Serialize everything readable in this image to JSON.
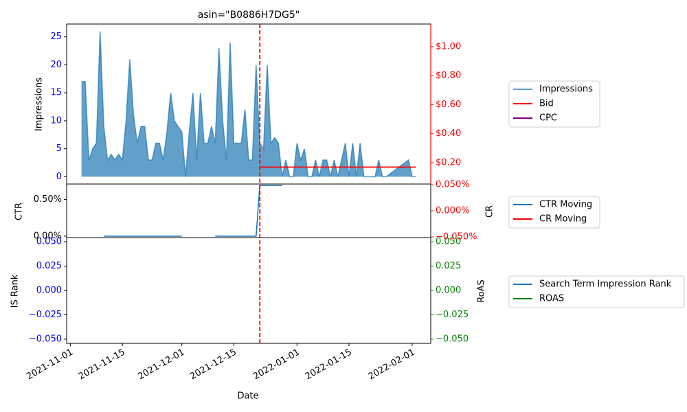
{
  "chart_data": [
    {
      "type": "area",
      "title": "asin=\"B0886H7DG5\"",
      "ylabel": "Impressions",
      "ylim": [
        -1.3,
        27.3
      ],
      "yticks": [
        0,
        5,
        10,
        15,
        20,
        25
      ],
      "ytick_color": "blue",
      "y2lim": [
        0.053,
        1.156
      ],
      "y2ticks": [
        {
          "value": 0.2,
          "label": "$0.20"
        },
        {
          "value": 0.4,
          "label": "$0.40"
        },
        {
          "value": 0.6,
          "label": "$0.60"
        },
        {
          "value": 0.8,
          "label": "$0.80"
        },
        {
          "value": 1.0,
          "label": "$1.00"
        }
      ],
      "y2tick_color": "red",
      "vline": "2021-12-22",
      "vline_color": "red",
      "series": [
        {
          "name": "Impressions",
          "color": "#1f77b4",
          "x": [
            "2021-11-04",
            "2021-11-05",
            "2021-11-06",
            "2021-11-07",
            "2021-11-08",
            "2021-11-09",
            "2021-11-10",
            "2021-11-11",
            "2021-11-12",
            "2021-11-13",
            "2021-11-14",
            "2021-11-15",
            "2021-11-16",
            "2021-11-17",
            "2021-11-18",
            "2021-11-19",
            "2021-11-20",
            "2021-11-21",
            "2021-11-22",
            "2021-11-23",
            "2021-11-24",
            "2021-11-25",
            "2021-11-26",
            "2021-11-27",
            "2021-11-28",
            "2021-11-29",
            "2021-11-30",
            "2021-12-01",
            "2021-12-02",
            "2021-12-03",
            "2021-12-04",
            "2021-12-05",
            "2021-12-06",
            "2021-12-07",
            "2021-12-08",
            "2021-12-09",
            "2021-12-10",
            "2021-12-11",
            "2021-12-12",
            "2021-12-13",
            "2021-12-14",
            "2021-12-15",
            "2021-12-16",
            "2021-12-17",
            "2021-12-18",
            "2021-12-19",
            "2021-12-20",
            "2021-12-21",
            "2021-12-22",
            "2021-12-23",
            "2021-12-24",
            "2021-12-25",
            "2021-12-26",
            "2021-12-27",
            "2021-12-28",
            "2021-12-29",
            "2021-12-30",
            "2021-12-31",
            "2022-01-01",
            "2022-01-02",
            "2022-01-03",
            "2022-01-04",
            "2022-01-05",
            "2022-01-06",
            "2022-01-07",
            "2022-01-08",
            "2022-01-09",
            "2022-01-10",
            "2022-01-11",
            "2022-01-12",
            "2022-01-13",
            "2022-01-14",
            "2022-01-15",
            "2022-01-16",
            "2022-01-17",
            "2022-01-18",
            "2022-01-19",
            "2022-01-20",
            "2022-01-21",
            "2022-01-22",
            "2022-01-23",
            "2022-01-24",
            "2022-01-25",
            "2022-01-31",
            "2022-02-01",
            "2022-02-02"
          ],
          "values": [
            17,
            17,
            3,
            5,
            6,
            26,
            9,
            3,
            4,
            3,
            4,
            3,
            10,
            21,
            11,
            6,
            9,
            9,
            3,
            3,
            6,
            6,
            3,
            8,
            15,
            10,
            9,
            8,
            0,
            8,
            15,
            3,
            15,
            6,
            6,
            9,
            6,
            23,
            10,
            3,
            24,
            6,
            6,
            6,
            12,
            3,
            3,
            20,
            6,
            5,
            20,
            6,
            7,
            6,
            0,
            3,
            0,
            0,
            6,
            3,
            5,
            0,
            0,
            3,
            0,
            3,
            3,
            0,
            3,
            0,
            3,
            6,
            0,
            6,
            0,
            6,
            0,
            0,
            0,
            0,
            3,
            0,
            0,
            3,
            0,
            0
          ]
        },
        {
          "name": "Bid",
          "color": "red",
          "axis": "y2",
          "x": [
            "2021-12-22",
            "2022-02-02"
          ],
          "values": [
            0.17,
            0.17
          ]
        },
        {
          "name": "CPC",
          "color": "purple",
          "axis": "y2",
          "x": [],
          "values": []
        }
      ]
    },
    {
      "type": "line",
      "ylabel": "CTR",
      "y2label": "CR",
      "ylim": [
        -0.02,
        0.71
      ],
      "yticks": [
        {
          "value": 0,
          "label": "0.00%"
        },
        {
          "value": 0.5,
          "label": "0.50%"
        }
      ],
      "ytick_color": "black",
      "y2lim": [
        -0.0514,
        0.0514
      ],
      "y2ticks": [
        {
          "value": -0.05,
          "label": "−0.050%"
        },
        {
          "value": 0,
          "label": "0.000%"
        },
        {
          "value": 0.05,
          "label": "0.050%"
        }
      ],
      "y2tick_color": "red",
      "series": [
        {
          "name": "CTR Moving",
          "color": "#1f77b4",
          "x": [
            "2021-11-10",
            "2021-12-01",
            "2021-12-05",
            "2021-12-10",
            "2021-12-21",
            "2021-12-22",
            "2021-12-28"
          ],
          "values": [
            0,
            0,
            null,
            0,
            0,
            0.69,
            0.69
          ]
        },
        {
          "name": "CR Moving",
          "color": "red",
          "axis": "y2",
          "x": [],
          "values": []
        }
      ]
    },
    {
      "type": "line",
      "ylabel": "IS Rank",
      "y2label": "RoAS",
      "xlabel": "Date",
      "ylim": [
        -0.0543,
        0.0543
      ],
      "yticks": [
        {
          "value": -0.05,
          "label": "−0.050"
        },
        {
          "value": -0.025,
          "label": "−0.025"
        },
        {
          "value": 0,
          "label": "0.000"
        },
        {
          "value": 0.025,
          "label": "0.025"
        },
        {
          "value": 0.05,
          "label": "0.050"
        }
      ],
      "ytick_color": "blue",
      "y2lim": [
        -0.0543,
        0.0543
      ],
      "y2ticks": [
        {
          "value": -0.05,
          "label": "−0.050"
        },
        {
          "value": -0.025,
          "label": "−0.025"
        },
        {
          "value": 0,
          "label": "0.000"
        },
        {
          "value": 0.025,
          "label": "0.025"
        },
        {
          "value": 0.05,
          "label": "0.050"
        }
      ],
      "y2tick_color": "green",
      "xlim": [
        "2021-10-31",
        "2022-02-06"
      ],
      "xticks": [
        "2021-11-01",
        "2021-11-15",
        "2021-12-01",
        "2021-12-15",
        "2022-01-01",
        "2022-01-15",
        "2022-02-01"
      ],
      "series": [
        {
          "name": "Search Term Impression Rank",
          "color": "#1f77b4",
          "x": [],
          "values": []
        },
        {
          "name": "ROAS",
          "color": "green",
          "axis": "y2",
          "x": [],
          "values": []
        }
      ]
    }
  ]
}
